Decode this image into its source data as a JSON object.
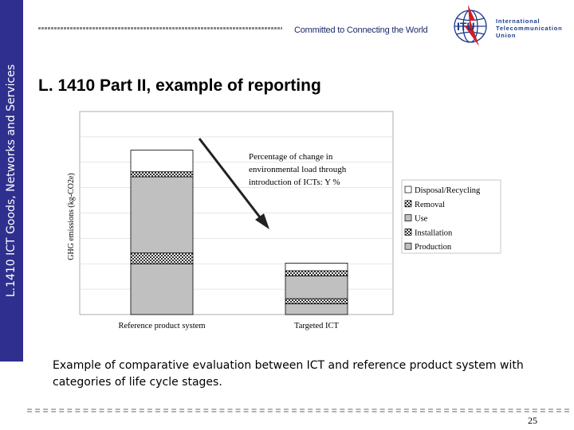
{
  "sidebar": {
    "text": "L.1410 ICT Goods, Networks and Services"
  },
  "header": {
    "tagline": "Committed to Connecting the World",
    "logo_line1": "International",
    "logo_line2": "Telecommunication",
    "logo_line3": "Union",
    "logo_mark": "ITU"
  },
  "title": "L. 1410 Part II, example of reporting",
  "caption": "Example of comparative evaluation between ICT and reference product system with categories of life cycle stages.",
  "page_number": "25",
  "colors": {
    "sidebar": "#2f2f8f",
    "gray_fill": "#c0c0c0",
    "arrow": "#222222",
    "logo": "#1a3a8c"
  },
  "chart_data": {
    "type": "bar",
    "stacked": true,
    "ylabel": "GHG emissions (kg-CO2e)",
    "xlabel": "",
    "categories": [
      "Reference product system",
      "Targeted ICT"
    ],
    "series": [
      {
        "name": "Production",
        "values": [
          40,
          8.5
        ],
        "pattern": "gray"
      },
      {
        "name": "Installation",
        "values": [
          8.5,
          4
        ],
        "pattern": "checker"
      },
      {
        "name": "Use",
        "values": [
          60,
          18
        ],
        "pattern": "gray"
      },
      {
        "name": "Removal",
        "values": [
          4,
          4
        ],
        "pattern": "checker"
      },
      {
        "name": "Disposal/Recycling",
        "values": [
          17,
          6
        ],
        "pattern": "white"
      }
    ],
    "ylim": [
      0,
      160
    ],
    "grid": true,
    "legend": "right",
    "annotation": {
      "text_line1": "Percentage of change in",
      "text_line2": "environmental load through",
      "text_line3": "introduction of ICTs: Y %"
    }
  }
}
